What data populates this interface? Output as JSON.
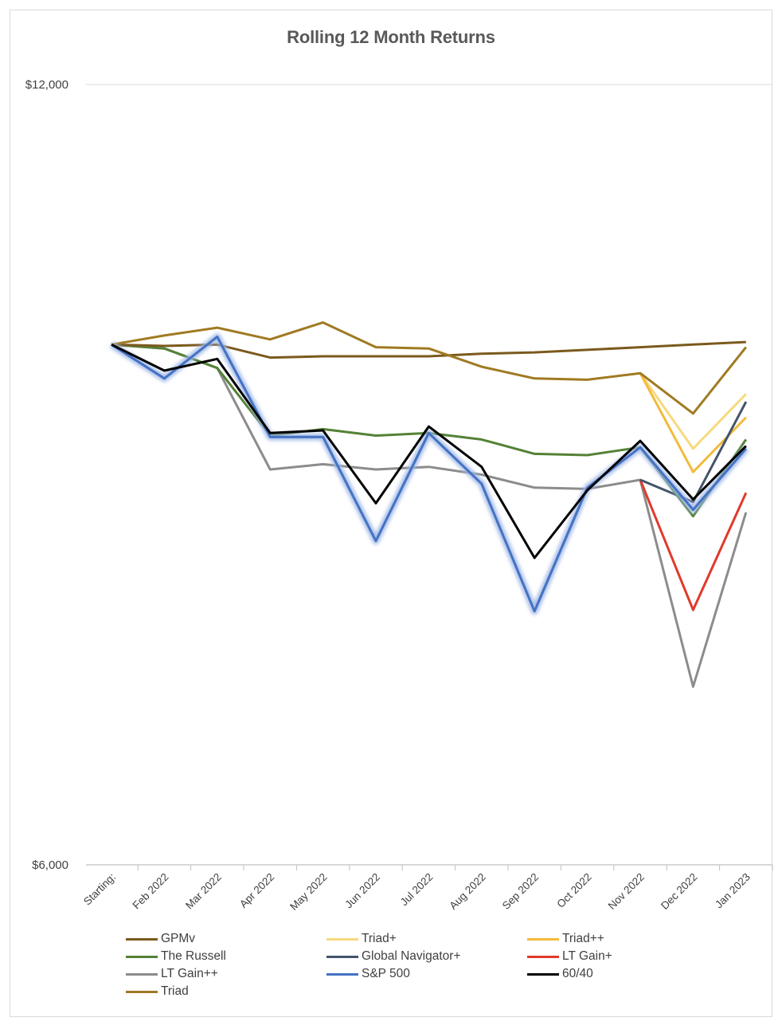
{
  "chart_data": {
    "type": "line",
    "title": "Rolling 12 Month Returns",
    "xlabel": "",
    "ylabel": "",
    "categories": [
      "Starting:",
      "Feb 2022",
      "Mar 2022",
      "Apr 2022",
      "May 2022",
      "Jun 2022",
      "Jul 2022",
      "Aug 2022",
      "Sep 2022",
      "Oct 2022",
      "Nov 2022",
      "Dec 2022",
      "Jan 2023"
    ],
    "ylim": [
      6000,
      12000
    ],
    "yticks": [
      6000,
      12000
    ],
    "ytick_labels": [
      "$6,000",
      "$12,000"
    ],
    "grid": "horizontal",
    "legend_position": "bottom",
    "series": [
      {
        "name": "GPMv",
        "color": "#7a5a1e",
        "width": 3,
        "values": [
          10000,
          9990,
          10000,
          9900,
          9910,
          9910,
          9910,
          9930,
          9940,
          9960,
          9980,
          10000,
          10020
        ]
      },
      {
        "name": "Triad+",
        "color": "#f7d97e",
        "width": 3,
        "values": [
          10000,
          null,
          null,
          null,
          null,
          null,
          null,
          null,
          null,
          null,
          9780,
          9200,
          9620
        ]
      },
      {
        "name": "Triad++",
        "color": "#f2bb3c",
        "width": 3,
        "values": [
          10000,
          null,
          null,
          null,
          null,
          null,
          null,
          null,
          null,
          null,
          9780,
          9020,
          9440
        ]
      },
      {
        "name": "The Russell",
        "color": "#548235",
        "width": 3,
        "values": [
          10000,
          9970,
          9820,
          9300,
          9350,
          9300,
          9320,
          9270,
          9160,
          9150,
          9210,
          8680,
          9270
        ]
      },
      {
        "name": "Global Navigator+",
        "color": "#44546a",
        "width": 3,
        "values": [
          10000,
          null,
          null,
          null,
          null,
          null,
          null,
          null,
          null,
          null,
          8960,
          8790,
          9560
        ]
      },
      {
        "name": "LT Gain+",
        "color": "#e03a2b",
        "width": 3,
        "values": [
          10000,
          null,
          null,
          null,
          null,
          null,
          null,
          null,
          null,
          null,
          8960,
          7960,
          8860
        ]
      },
      {
        "name": "LT Gain++",
        "color": "#8c8c8c",
        "width": 3,
        "values": [
          10000,
          9970,
          9820,
          9040,
          9080,
          9040,
          9060,
          9000,
          8900,
          8890,
          8960,
          7370,
          8710
        ]
      },
      {
        "name": "S&P 500",
        "color": "#4472c4",
        "width": 3,
        "values": [
          10000,
          9740,
          10060,
          9290,
          9290,
          8490,
          9320,
          8930,
          7950,
          8900,
          9210,
          8730,
          9200
        ]
      },
      {
        "name": "60/40",
        "color": "#000000",
        "width": 3,
        "values": [
          10000,
          9800,
          9890,
          9320,
          9340,
          8780,
          9370,
          9060,
          8360,
          8880,
          9260,
          8810,
          9220
        ]
      },
      {
        "name": "Triad",
        "color": "#a07a22",
        "width": 3,
        "values": [
          10000,
          10070,
          10130,
          10040,
          10170,
          9980,
          9970,
          9830,
          9740,
          9730,
          9780,
          9470,
          9980
        ]
      }
    ]
  }
}
